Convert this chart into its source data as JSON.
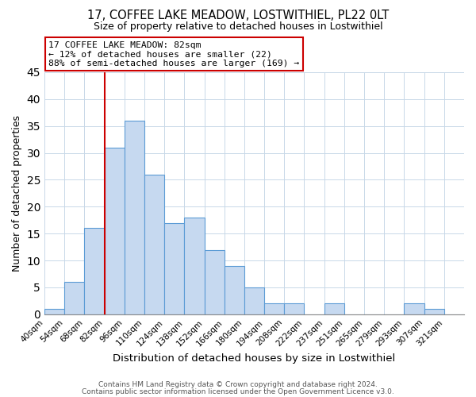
{
  "title": "17, COFFEE LAKE MEADOW, LOSTWITHIEL, PL22 0LT",
  "subtitle": "Size of property relative to detached houses in Lostwithiel",
  "xlabel": "Distribution of detached houses by size in Lostwithiel",
  "ylabel": "Number of detached properties",
  "footer1": "Contains HM Land Registry data © Crown copyright and database right 2024.",
  "footer2": "Contains public sector information licensed under the Open Government Licence v3.0.",
  "bin_labels": [
    "40sqm",
    "54sqm",
    "68sqm",
    "82sqm",
    "96sqm",
    "110sqm",
    "124sqm",
    "138sqm",
    "152sqm",
    "166sqm",
    "180sqm",
    "194sqm",
    "208sqm",
    "222sqm",
    "237sqm",
    "251sqm",
    "265sqm",
    "279sqm",
    "293sqm",
    "307sqm",
    "321sqm"
  ],
  "bar_values": [
    1,
    6,
    16,
    31,
    36,
    26,
    17,
    18,
    12,
    9,
    5,
    2,
    2,
    0,
    2,
    0,
    0,
    0,
    2,
    1,
    0
  ],
  "bar_color": "#c6d9f0",
  "bar_edge_color": "#5b9bd5",
  "red_line_index": 3,
  "red_line_color": "#cc0000",
  "annotation_line1": "17 COFFEE LAKE MEADOW: 82sqm",
  "annotation_line2": "← 12% of detached houses are smaller (22)",
  "annotation_line3": "88% of semi-detached houses are larger (169) →",
  "annotation_box_color": "#ffffff",
  "annotation_box_edge": "#cc0000",
  "ylim": [
    0,
    45
  ],
  "yticks": [
    0,
    5,
    10,
    15,
    20,
    25,
    30,
    35,
    40,
    45
  ],
  "background_color": "#ffffff",
  "grid_color": "#c8d8e8"
}
